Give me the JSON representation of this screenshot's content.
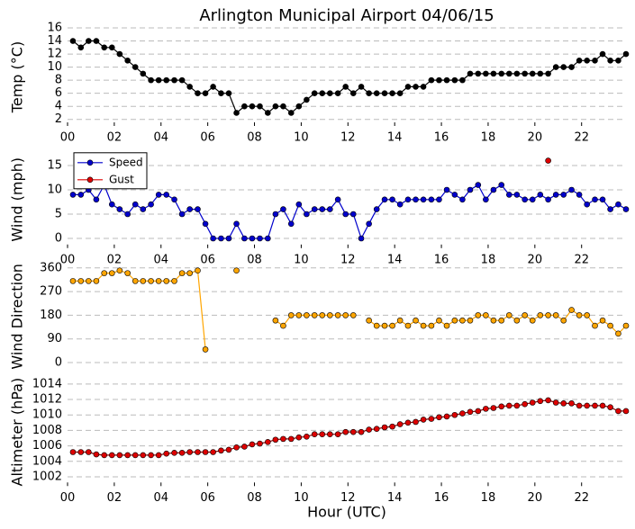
{
  "title": "Arlington Municipal Airport 04/06/15",
  "xlabel": "Hour (UTC)",
  "chart_data": [
    {
      "type": "line",
      "ylabel": "Temp (°C)",
      "xlim": [
        0,
        23.9
      ],
      "ylim": [
        1,
        16
      ],
      "yticks": [
        2,
        4,
        6,
        8,
        10,
        12,
        14,
        16
      ],
      "grid": true,
      "xticks": [
        {
          "value": 0,
          "label": "00"
        },
        {
          "value": 2,
          "label": "02"
        },
        {
          "value": 4,
          "label": "04"
        },
        {
          "value": 6,
          "label": "06"
        },
        {
          "value": 8,
          "label": "08"
        },
        {
          "value": 10,
          "label": "10"
        },
        {
          "value": 12,
          "label": "12"
        },
        {
          "value": 14,
          "label": "14"
        },
        {
          "value": 16,
          "label": "16"
        },
        {
          "value": 18,
          "label": "18"
        },
        {
          "value": 20,
          "label": "20"
        },
        {
          "value": 22,
          "label": "22"
        }
      ],
      "x": [
        0.23,
        0.57,
        0.9,
        1.23,
        1.57,
        1.9,
        2.23,
        2.57,
        2.9,
        3.23,
        3.57,
        3.9,
        4.23,
        4.57,
        4.9,
        5.23,
        5.57,
        5.9,
        6.23,
        6.57,
        6.9,
        7.23,
        7.57,
        7.9,
        8.23,
        8.57,
        8.9,
        9.23,
        9.57,
        9.9,
        10.23,
        10.57,
        10.9,
        11.23,
        11.57,
        11.9,
        12.23,
        12.57,
        12.9,
        13.23,
        13.57,
        13.9,
        14.23,
        14.57,
        14.9,
        15.23,
        15.57,
        15.9,
        16.23,
        16.57,
        16.9,
        17.23,
        17.57,
        17.9,
        18.23,
        18.57,
        18.9,
        19.23,
        19.57,
        19.9,
        20.23,
        20.57,
        20.9,
        21.23,
        21.57,
        21.9,
        22.23,
        22.57,
        22.9,
        23.23,
        23.57,
        23.9
      ],
      "series": [
        {
          "color": "#000000",
          "line_color": "#000000",
          "values": [
            14,
            13,
            14,
            14,
            13,
            13,
            12,
            11,
            10,
            9,
            8,
            8,
            8,
            8,
            8,
            7,
            6,
            6,
            7,
            6,
            6,
            3,
            4,
            4,
            4,
            3,
            4,
            4,
            3,
            4,
            5,
            6,
            6,
            6,
            6,
            7,
            6,
            7,
            6,
            6,
            6,
            6,
            6,
            7,
            7,
            7,
            8,
            8,
            8,
            8,
            8,
            9,
            9,
            9,
            9,
            9,
            9,
            9,
            9,
            9,
            9,
            9,
            10,
            10,
            10,
            11,
            11,
            11,
            12,
            11,
            11,
            12
          ]
        }
      ]
    },
    {
      "type": "line",
      "ylabel": "Wind (mph)",
      "xlim": [
        0,
        23.9
      ],
      "ylim": [
        -2,
        18
      ],
      "yticks": [
        0,
        5,
        10,
        15
      ],
      "grid": true,
      "legend": "upper left",
      "xticks": [
        {
          "value": 0,
          "label": "00"
        },
        {
          "value": 2,
          "label": "02"
        },
        {
          "value": 4,
          "label": "04"
        },
        {
          "value": 6,
          "label": "06"
        },
        {
          "value": 8,
          "label": "08"
        },
        {
          "value": 10,
          "label": "10"
        },
        {
          "value": 12,
          "label": "12"
        },
        {
          "value": 14,
          "label": "14"
        },
        {
          "value": 16,
          "label": "16"
        },
        {
          "value": 18,
          "label": "18"
        },
        {
          "value": 20,
          "label": "20"
        },
        {
          "value": 22,
          "label": "22"
        }
      ],
      "x": [
        0.23,
        0.57,
        0.9,
        1.23,
        1.57,
        1.9,
        2.23,
        2.57,
        2.9,
        3.23,
        3.57,
        3.9,
        4.23,
        4.57,
        4.9,
        5.23,
        5.57,
        5.9,
        6.23,
        6.57,
        6.9,
        7.23,
        7.57,
        7.9,
        8.23,
        8.57,
        8.9,
        9.23,
        9.57,
        9.9,
        10.23,
        10.57,
        10.9,
        11.23,
        11.57,
        11.9,
        12.23,
        12.57,
        12.9,
        13.23,
        13.57,
        13.9,
        14.23,
        14.57,
        14.9,
        15.23,
        15.57,
        15.9,
        16.23,
        16.57,
        16.9,
        17.23,
        17.57,
        17.9,
        18.23,
        18.57,
        18.9,
        19.23,
        19.57,
        19.9,
        20.23,
        20.57,
        20.9,
        21.23,
        21.57,
        21.9,
        22.23,
        22.57,
        22.9,
        23.23,
        23.57,
        23.9
      ],
      "series": [
        {
          "name": "Speed",
          "color": "#0000cc",
          "line_color": "#0000cc",
          "values": [
            9,
            9,
            10,
            8,
            11,
            7,
            6,
            5,
            7,
            6,
            7,
            9,
            9,
            8,
            5,
            6,
            6,
            3,
            0,
            0,
            0,
            3,
            0,
            0,
            0,
            0,
            5,
            6,
            3,
            7,
            5,
            6,
            6,
            6,
            8,
            5,
            5,
            0,
            3,
            6,
            8,
            8,
            7,
            8,
            8,
            8,
            8,
            8,
            10,
            9,
            8,
            10,
            11,
            8,
            10,
            11,
            9,
            9,
            8,
            8,
            9,
            8,
            9,
            9,
            10,
            9,
            7,
            8,
            8,
            6,
            7,
            6
          ]
        },
        {
          "name": "Gust",
          "color": "#dd0000",
          "line_color": "#dd0000",
          "values": [
            null,
            null,
            null,
            null,
            null,
            null,
            null,
            null,
            null,
            null,
            null,
            null,
            null,
            null,
            null,
            null,
            null,
            null,
            null,
            null,
            null,
            null,
            null,
            null,
            null,
            null,
            null,
            null,
            null,
            null,
            null,
            null,
            null,
            null,
            null,
            null,
            null,
            null,
            null,
            null,
            null,
            null,
            null,
            null,
            null,
            null,
            null,
            null,
            null,
            null,
            null,
            null,
            null,
            null,
            null,
            null,
            null,
            null,
            null,
            null,
            null,
            16,
            null,
            null,
            null,
            null,
            null,
            null,
            null,
            null,
            null,
            null
          ]
        }
      ]
    },
    {
      "type": "line",
      "ylabel": "Wind Direction",
      "xlim": [
        0,
        23.9
      ],
      "ylim": [
        -40,
        390
      ],
      "yticks": [
        0,
        90,
        180,
        270,
        360
      ],
      "grid": true,
      "x": [
        0.23,
        0.57,
        0.9,
        1.23,
        1.57,
        1.9,
        2.23,
        2.57,
        2.9,
        3.23,
        3.57,
        3.9,
        4.23,
        4.57,
        4.9,
        5.23,
        5.57,
        5.9,
        6.23,
        6.57,
        6.9,
        7.23,
        7.57,
        7.9,
        8.23,
        8.57,
        8.9,
        9.23,
        9.57,
        9.9,
        10.23,
        10.57,
        10.9,
        11.23,
        11.57,
        11.9,
        12.23,
        12.57,
        12.9,
        13.23,
        13.57,
        13.9,
        14.23,
        14.57,
        14.9,
        15.23,
        15.57,
        15.9,
        16.23,
        16.57,
        16.9,
        17.23,
        17.57,
        17.9,
        18.23,
        18.57,
        18.9,
        19.23,
        19.57,
        19.9,
        20.23,
        20.57,
        20.9,
        21.23,
        21.57,
        21.9,
        22.23,
        22.57,
        22.9,
        23.23,
        23.57,
        23.9
      ],
      "series": [
        {
          "color": "#ffa500",
          "line_color": "#ffa500",
          "values": [
            310,
            310,
            310,
            310,
            340,
            340,
            350,
            340,
            310,
            310,
            310,
            310,
            310,
            310,
            340,
            340,
            350,
            50,
            null,
            null,
            null,
            350,
            null,
            null,
            null,
            null,
            160,
            140,
            180,
            180,
            180,
            180,
            180,
            180,
            180,
            180,
            180,
            null,
            160,
            140,
            140,
            140,
            160,
            140,
            160,
            140,
            140,
            160,
            140,
            160,
            160,
            160,
            180,
            180,
            160,
            160,
            180,
            160,
            180,
            160,
            180,
            180,
            180,
            160,
            200,
            180,
            180,
            140,
            160,
            140,
            110,
            140
          ]
        }
      ]
    },
    {
      "type": "line",
      "ylabel": "Altimeter (hPa)",
      "xlim": [
        0,
        23.9
      ],
      "ylim": [
        1000.8,
        1014.8
      ],
      "yticks": [
        1002,
        1004,
        1006,
        1008,
        1010,
        1012,
        1014
      ],
      "grid": true,
      "xticks": [
        {
          "value": 0,
          "label": "00"
        },
        {
          "value": 2,
          "label": "02"
        },
        {
          "value": 4,
          "label": "04"
        },
        {
          "value": 6,
          "label": "06"
        },
        {
          "value": 8,
          "label": "08"
        },
        {
          "value": 10,
          "label": "10"
        },
        {
          "value": 12,
          "label": "12"
        },
        {
          "value": 14,
          "label": "14"
        },
        {
          "value": 16,
          "label": "16"
        },
        {
          "value": 18,
          "label": "18"
        },
        {
          "value": 20,
          "label": "20"
        },
        {
          "value": 22,
          "label": "22"
        }
      ],
      "x": [
        0.23,
        0.57,
        0.9,
        1.23,
        1.57,
        1.9,
        2.23,
        2.57,
        2.9,
        3.23,
        3.57,
        3.9,
        4.23,
        4.57,
        4.9,
        5.23,
        5.57,
        5.9,
        6.23,
        6.57,
        6.9,
        7.23,
        7.57,
        7.9,
        8.23,
        8.57,
        8.9,
        9.23,
        9.57,
        9.9,
        10.23,
        10.57,
        10.9,
        11.23,
        11.57,
        11.9,
        12.23,
        12.57,
        12.9,
        13.23,
        13.57,
        13.9,
        14.23,
        14.57,
        14.9,
        15.23,
        15.57,
        15.9,
        16.23,
        16.57,
        16.9,
        17.23,
        17.57,
        17.9,
        18.23,
        18.57,
        18.9,
        19.23,
        19.57,
        19.9,
        20.23,
        20.57,
        20.9,
        21.23,
        21.57,
        21.9,
        22.23,
        22.57,
        22.9,
        23.23,
        23.57,
        23.9
      ],
      "series": [
        {
          "color": "#dd0000",
          "line_color": "#8b0000",
          "values": [
            1005.2,
            1005.2,
            1005.2,
            1004.9,
            1004.8,
            1004.8,
            1004.8,
            1004.8,
            1004.8,
            1004.8,
            1004.8,
            1004.8,
            1005.0,
            1005.1,
            1005.1,
            1005.2,
            1005.2,
            1005.2,
            1005.2,
            1005.4,
            1005.5,
            1005.8,
            1005.9,
            1006.2,
            1006.3,
            1006.5,
            1006.8,
            1006.9,
            1006.9,
            1007.1,
            1007.2,
            1007.5,
            1007.5,
            1007.5,
            1007.5,
            1007.8,
            1007.8,
            1007.8,
            1008.1,
            1008.2,
            1008.4,
            1008.5,
            1008.8,
            1009.0,
            1009.1,
            1009.4,
            1009.5,
            1009.7,
            1009.8,
            1010.0,
            1010.2,
            1010.4,
            1010.5,
            1010.8,
            1010.9,
            1011.1,
            1011.2,
            1011.2,
            1011.4,
            1011.6,
            1011.8,
            1011.9,
            1011.6,
            1011.5,
            1011.5,
            1011.2,
            1011.2,
            1011.2,
            1011.2,
            1011.0,
            1010.5,
            1010.5
          ]
        }
      ]
    }
  ]
}
